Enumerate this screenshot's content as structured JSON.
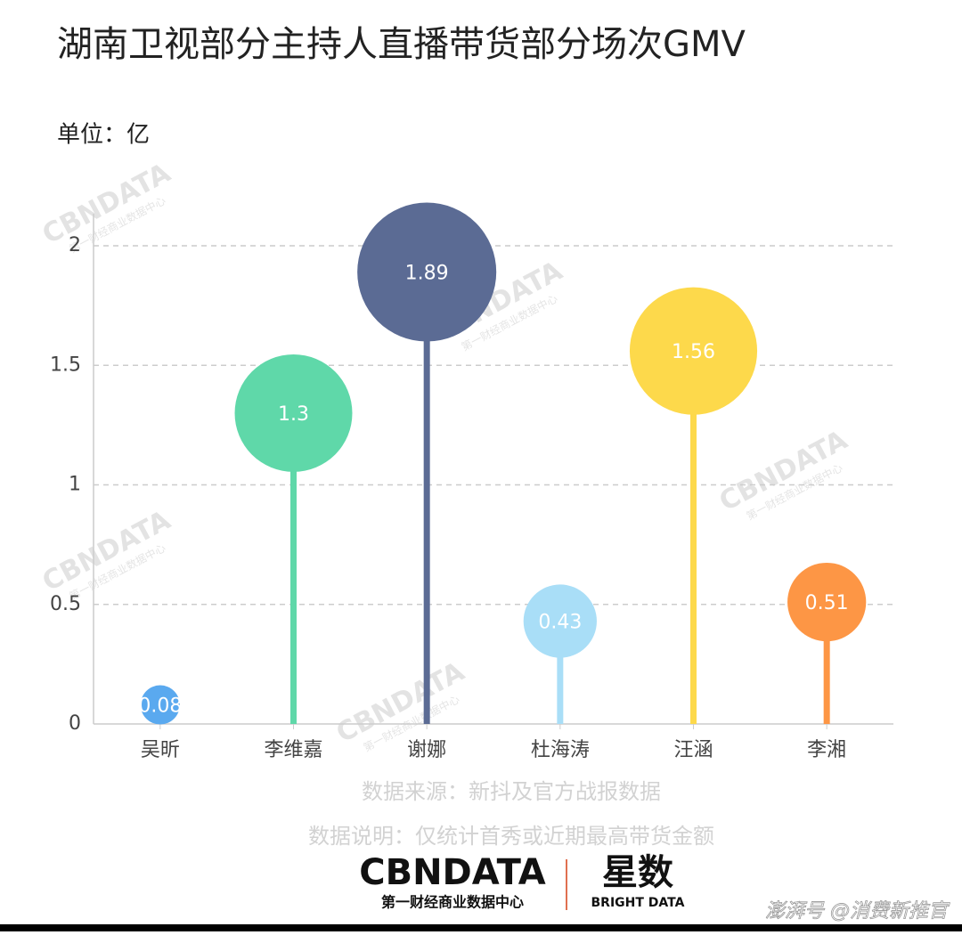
{
  "chart_data": {
    "type": "lollipop",
    "title": "湖南卫视部分主持人直播带货部分场次GMV",
    "unit_label": "单位：亿",
    "categories": [
      "吴昕",
      "李维嘉",
      "谢娜",
      "杜海涛",
      "汪涵",
      "李湘"
    ],
    "values": [
      0.08,
      1.3,
      1.89,
      0.43,
      1.56,
      0.51
    ],
    "colors": [
      "#5aa9ef",
      "#5fd8a9",
      "#5b6b94",
      "#a9def7",
      "#fdd94b",
      "#fd9645"
    ],
    "ylim": [
      0,
      2
    ],
    "yticks": [
      0,
      0.5,
      1,
      1.5,
      2
    ],
    "grid": true,
    "notes": [
      "数据来源：新抖及官方战报数据",
      "数据说明：仅统计首秀或近期最高带货金额"
    ],
    "watermark": [
      "CBNDATA",
      "第一财经商业数据中心"
    ],
    "logo": {
      "brand": "CBNDATA",
      "brand_sub": "第一财经商业数据中心",
      "partner": "星数",
      "partner_sub": "BRIGHT DATA"
    },
    "footer": "澎湃号 @消费新推官"
  }
}
